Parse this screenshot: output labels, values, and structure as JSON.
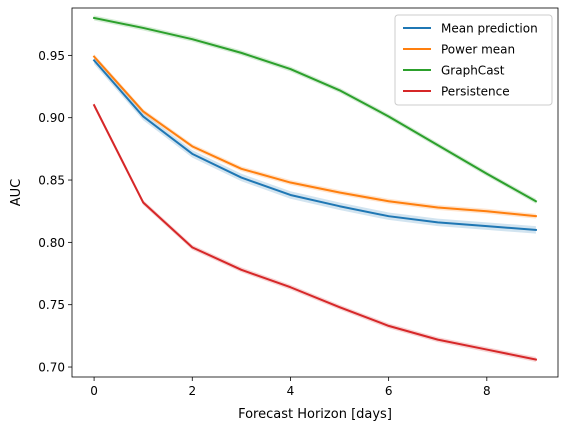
{
  "chart_data": {
    "type": "line",
    "xlabel": "Forecast Horizon [days]",
    "ylabel": "AUC",
    "xlim": [
      -0.45,
      9.45
    ],
    "ylim": [
      0.692,
      0.988
    ],
    "xticks": [
      0,
      2,
      4,
      6,
      8
    ],
    "yticks": [
      0.7,
      0.75,
      0.8,
      0.85,
      0.9,
      0.95
    ],
    "ytick_labels": [
      "0.70",
      "0.75",
      "0.80",
      "0.85",
      "0.90",
      "0.95"
    ],
    "grid": false,
    "legend_position": "top-right",
    "x": [
      0,
      1,
      2,
      3,
      4,
      5,
      6,
      7,
      8,
      9
    ],
    "series": [
      {
        "name": "Mean prediction",
        "color": "#1f77b4",
        "band": 0.003,
        "values": [
          0.946,
          0.901,
          0.871,
          0.852,
          0.838,
          0.829,
          0.821,
          0.816,
          0.813,
          0.81
        ]
      },
      {
        "name": "Power mean",
        "color": "#ff7f0e",
        "band": 0.002,
        "values": [
          0.949,
          0.905,
          0.877,
          0.859,
          0.848,
          0.84,
          0.833,
          0.828,
          0.825,
          0.821
        ]
      },
      {
        "name": "GraphCast",
        "color": "#2ca02c",
        "band": 0.002,
        "values": [
          0.98,
          0.972,
          0.963,
          0.952,
          0.939,
          0.922,
          0.901,
          0.878,
          0.855,
          0.833
        ]
      },
      {
        "name": "Persistence",
        "color": "#d62728",
        "band": 0.002,
        "values": [
          0.91,
          0.832,
          0.796,
          0.778,
          0.764,
          0.748,
          0.733,
          0.722,
          0.714,
          0.706
        ]
      }
    ]
  }
}
